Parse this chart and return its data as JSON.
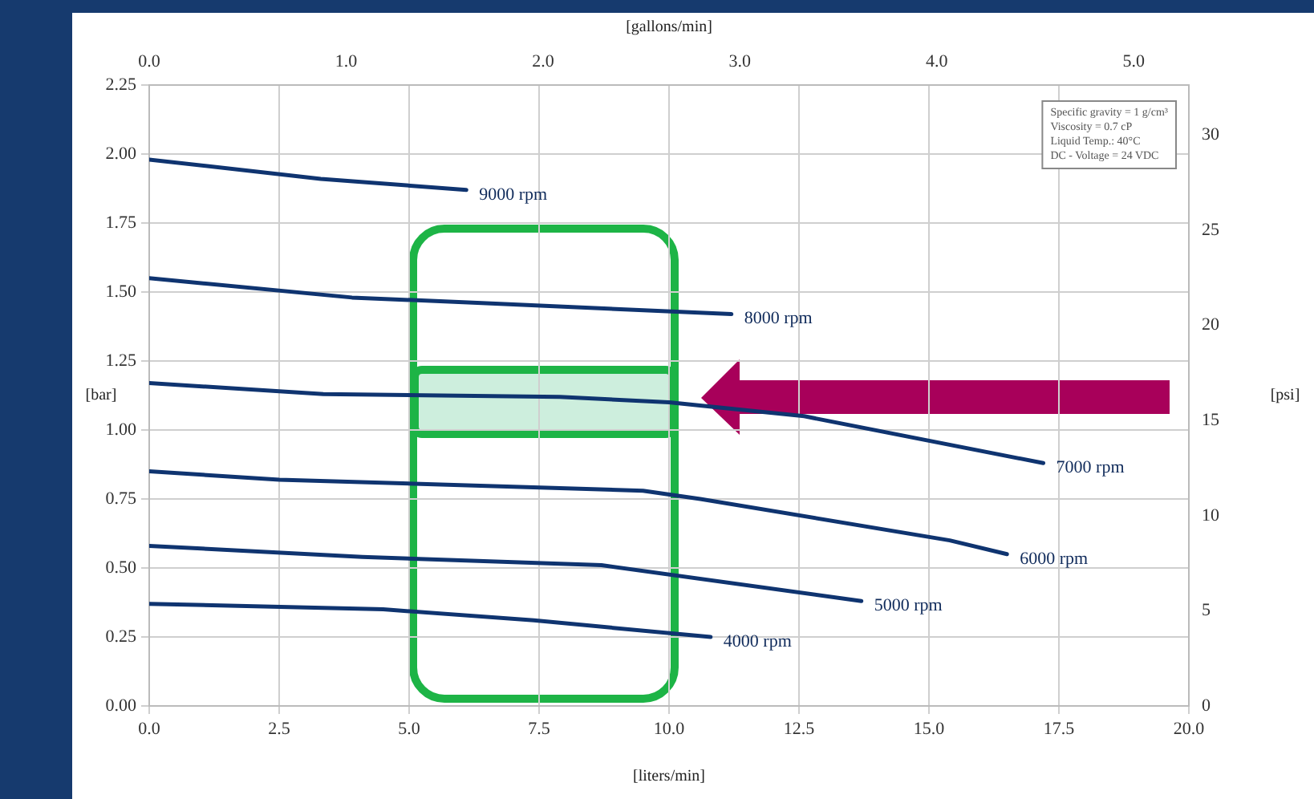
{
  "chart_data": {
    "type": "line",
    "xlabel": "[liters/min]",
    "x2label": "[gallons/min]",
    "ylabel": "[bar]",
    "y2label": "[psi]",
    "xlim": [
      0,
      20
    ],
    "xticks": [
      {
        "value": 0,
        "label": "0.0"
      },
      {
        "value": 2.5,
        "label": "2.5"
      },
      {
        "value": 5,
        "label": "5.0"
      },
      {
        "value": 7.5,
        "label": "7.5"
      },
      {
        "value": 10,
        "label": "10.0"
      },
      {
        "value": 12.5,
        "label": "12.5"
      },
      {
        "value": 15,
        "label": "15.0"
      },
      {
        "value": 17.5,
        "label": "17.5"
      },
      {
        "value": 20,
        "label": "20.0"
      }
    ],
    "x2lim": [
      0,
      5.28
    ],
    "x2ticks": [
      {
        "value": 0,
        "label": "0.0"
      },
      {
        "value": 1,
        "label": "1.0"
      },
      {
        "value": 2,
        "label": "2.0"
      },
      {
        "value": 3,
        "label": "3.0"
      },
      {
        "value": 4,
        "label": "4.0"
      },
      {
        "value": 5,
        "label": "5.0"
      }
    ],
    "ylim": [
      0,
      2.25
    ],
    "yticks": [
      {
        "value": 0,
        "label": "0.00"
      },
      {
        "value": 0.25,
        "label": "0.25"
      },
      {
        "value": 0.5,
        "label": "0.50"
      },
      {
        "value": 0.75,
        "label": "0.75"
      },
      {
        "value": 1,
        "label": "1.00"
      },
      {
        "value": 1.25,
        "label": "1.25"
      },
      {
        "value": 1.5,
        "label": "1.50"
      },
      {
        "value": 1.75,
        "label": "1.75"
      },
      {
        "value": 2,
        "label": "2.00"
      },
      {
        "value": 2.25,
        "label": "2.25"
      }
    ],
    "y2lim": [
      0,
      32.63
    ],
    "y2ticks": [
      0,
      5,
      10,
      15,
      20,
      25,
      30
    ],
    "grid": true,
    "legend": false,
    "marker": "none",
    "line_style": "solid",
    "series": [
      {
        "name": "9000 rpm",
        "color": "#0f3470",
        "x": [
          0,
          3.3,
          6.1
        ],
        "values": [
          1.98,
          1.91,
          1.87
        ]
      },
      {
        "name": "8000 rpm",
        "color": "#0f3470",
        "x": [
          0,
          3.9,
          6.4,
          11.2
        ],
        "values": [
          1.55,
          1.48,
          1.46,
          1.42
        ]
      },
      {
        "name": "7000 rpm",
        "color": "#0f3470",
        "x": [
          0,
          3.35,
          7.9,
          10,
          12.6,
          17.2
        ],
        "values": [
          1.17,
          1.13,
          1.12,
          1.1,
          1.05,
          0.88
        ]
      },
      {
        "name": "6000 rpm",
        "color": "#0f3470",
        "x": [
          0,
          2.5,
          9.5,
          10.6,
          15.4,
          16.5
        ],
        "values": [
          0.85,
          0.82,
          0.78,
          0.75,
          0.6,
          0.55
        ]
      },
      {
        "name": "5000 rpm",
        "color": "#0f3470",
        "x": [
          0,
          4.1,
          8.7,
          13.7
        ],
        "values": [
          0.58,
          0.54,
          0.51,
          0.38
        ]
      },
      {
        "name": "4000 rpm",
        "color": "#0f3470",
        "x": [
          0,
          4.5,
          7.4,
          10.8
        ],
        "values": [
          0.37,
          0.35,
          0.31,
          0.25
        ]
      }
    ],
    "annotations": [
      "Specific gravity = 1 g/cm³",
      "Viscosity = 0.7 cP",
      "Liquid Temp.: 40°C",
      "DC - Voltage = 24 VDC"
    ]
  }
}
